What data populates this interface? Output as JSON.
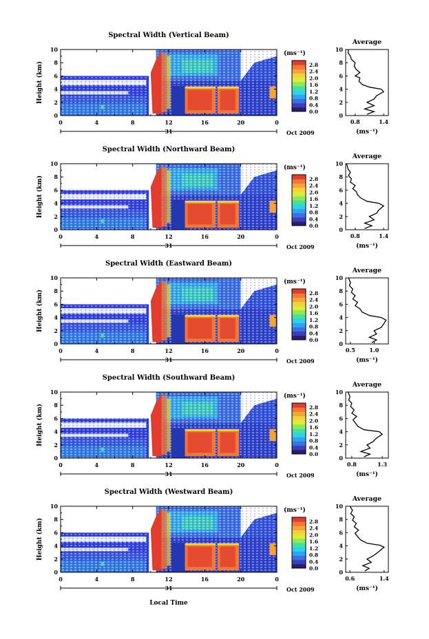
{
  "figure": {
    "xlabel": "Local Time",
    "date_label": "Oct 2009",
    "day_label": "31",
    "unit_label": "(ms⁻¹)",
    "avg_title": "Average",
    "avg_xlabel": "(ms⁻¹)",
    "ylabel": "Height (km)",
    "colorbar_ticks": [
      "2.8",
      "2.4",
      "2.0",
      "1.6",
      "1.2",
      "0.8",
      "0.4",
      "0.0"
    ],
    "colorbar_colors": [
      "#2b1d6b",
      "#3b3fb8",
      "#3c6fe0",
      "#2fa3f0",
      "#2fd0e8",
      "#45e0a0",
      "#8ee85a",
      "#d8ee3a",
      "#f5d23a",
      "#f4a43a",
      "#f0783a",
      "#e23d2c"
    ]
  },
  "chart_data": [
    {
      "type": "heatmap",
      "title": "Spectral Width (Vertical Beam)",
      "xlim": [
        0,
        24
      ],
      "ylim": [
        0,
        10
      ],
      "xticks": [
        "0",
        "4",
        "8",
        "12",
        "16",
        "20",
        "0"
      ],
      "yticks": [
        "0",
        "2",
        "4",
        "6",
        "8",
        "10"
      ],
      "average": {
        "xticks": [
          "0.8",
          "1.4"
        ],
        "xlim": [
          0.6,
          1.5
        ],
        "profile": [
          [
            1.05,
            0.2
          ],
          [
            1.2,
            0.6
          ],
          [
            1.0,
            1.0
          ],
          [
            1.2,
            1.5
          ],
          [
            1.05,
            2.0
          ],
          [
            1.2,
            2.5
          ],
          [
            1.25,
            3.0
          ],
          [
            1.4,
            3.6
          ],
          [
            1.35,
            4.0
          ],
          [
            1.1,
            4.3
          ],
          [
            0.95,
            4.7
          ],
          [
            0.88,
            5.2
          ],
          [
            0.9,
            5.7
          ],
          [
            0.8,
            6.0
          ],
          [
            0.9,
            6.5
          ],
          [
            0.82,
            7.0
          ],
          [
            0.78,
            7.5
          ],
          [
            0.8,
            8.0
          ],
          [
            0.72,
            8.5
          ],
          [
            0.7,
            9.0
          ],
          [
            0.65,
            9.5
          ],
          [
            0.66,
            10.0
          ]
        ]
      }
    },
    {
      "type": "heatmap",
      "title": "Spectral Width (Northward Beam)",
      "xlim": [
        0,
        24
      ],
      "ylim": [
        0,
        10
      ],
      "xticks": [
        "0",
        "4",
        "8",
        "12",
        "16",
        "20",
        "0"
      ],
      "yticks": [
        "0",
        "2",
        "4",
        "6",
        "8",
        "10"
      ],
      "average": {
        "xticks": [
          "0.8",
          "1.4"
        ],
        "xlim": [
          0.6,
          1.5
        ],
        "profile": [
          [
            1.0,
            0.2
          ],
          [
            1.15,
            0.6
          ],
          [
            1.0,
            1.0
          ],
          [
            1.2,
            1.5
          ],
          [
            1.1,
            2.0
          ],
          [
            1.25,
            2.5
          ],
          [
            1.3,
            3.0
          ],
          [
            1.4,
            3.6
          ],
          [
            1.3,
            4.0
          ],
          [
            1.05,
            4.3
          ],
          [
            0.92,
            4.8
          ],
          [
            0.85,
            5.3
          ],
          [
            0.82,
            5.8
          ],
          [
            0.75,
            6.2
          ],
          [
            0.8,
            6.7
          ],
          [
            0.7,
            7.2
          ],
          [
            0.72,
            7.7
          ],
          [
            0.66,
            8.2
          ],
          [
            0.7,
            8.7
          ],
          [
            0.65,
            9.2
          ],
          [
            0.62,
            10.0
          ]
        ]
      }
    },
    {
      "type": "heatmap",
      "title": "Spectral Width (Eastward Beam)",
      "xlim": [
        0,
        24
      ],
      "ylim": [
        0,
        10
      ],
      "xticks": [
        "0",
        "4",
        "8",
        "12",
        "16",
        "20",
        "0"
      ],
      "yticks": [
        "0",
        "2",
        "4",
        "6",
        "8",
        "10"
      ],
      "average": {
        "xticks": [
          "0.5",
          "1.0"
        ],
        "xlim": [
          0.4,
          1.3
        ],
        "profile": [
          [
            0.95,
            0.2
          ],
          [
            1.05,
            0.6
          ],
          [
            0.9,
            1.0
          ],
          [
            1.05,
            1.5
          ],
          [
            1.0,
            2.0
          ],
          [
            1.15,
            2.5
          ],
          [
            1.2,
            3.0
          ],
          [
            1.25,
            3.6
          ],
          [
            1.15,
            4.0
          ],
          [
            0.9,
            4.3
          ],
          [
            0.75,
            4.8
          ],
          [
            0.7,
            5.3
          ],
          [
            0.6,
            5.8
          ],
          [
            0.65,
            6.3
          ],
          [
            0.55,
            6.8
          ],
          [
            0.6,
            7.3
          ],
          [
            0.52,
            7.8
          ],
          [
            0.55,
            8.3
          ],
          [
            0.48,
            8.8
          ],
          [
            0.5,
            9.3
          ],
          [
            0.46,
            10.0
          ]
        ]
      }
    },
    {
      "type": "heatmap",
      "title": "Spectral Width (Southward Beam)",
      "xlim": [
        0,
        24
      ],
      "ylim": [
        0,
        10
      ],
      "xticks": [
        "0",
        "4",
        "8",
        "12",
        "16",
        "20",
        "0"
      ],
      "yticks": [
        "0",
        "2",
        "4",
        "6",
        "8",
        "10"
      ],
      "average": {
        "xticks": [
          "0.8",
          "1.3"
        ],
        "xlim": [
          0.7,
          1.4
        ],
        "profile": [
          [
            1.0,
            0.2
          ],
          [
            1.1,
            0.6
          ],
          [
            0.95,
            1.0
          ],
          [
            1.1,
            1.5
          ],
          [
            1.05,
            2.0
          ],
          [
            1.15,
            2.5
          ],
          [
            1.2,
            3.0
          ],
          [
            1.3,
            3.6
          ],
          [
            1.25,
            4.0
          ],
          [
            1.0,
            4.3
          ],
          [
            0.9,
            4.8
          ],
          [
            0.86,
            5.3
          ],
          [
            0.82,
            5.8
          ],
          [
            0.88,
            6.3
          ],
          [
            0.8,
            6.8
          ],
          [
            0.84,
            7.3
          ],
          [
            0.78,
            7.8
          ],
          [
            0.8,
            8.3
          ],
          [
            0.75,
            8.8
          ],
          [
            0.77,
            9.3
          ],
          [
            0.74,
            10.0
          ]
        ]
      }
    },
    {
      "type": "heatmap",
      "title": "Spectral Width (Westward Beam)",
      "xlim": [
        0,
        24
      ],
      "ylim": [
        0,
        10
      ],
      "xticks": [
        "0",
        "4",
        "8",
        "12",
        "16",
        "20",
        "0"
      ],
      "yticks": [
        "0",
        "2",
        "4",
        "6",
        "8",
        "10"
      ],
      "average": {
        "xticks": [
          "0.6",
          "1.4"
        ],
        "xlim": [
          0.5,
          1.5
        ],
        "profile": [
          [
            0.95,
            0.2
          ],
          [
            1.05,
            0.6
          ],
          [
            0.9,
            1.0
          ],
          [
            1.1,
            1.5
          ],
          [
            1.0,
            2.0
          ],
          [
            1.15,
            2.5
          ],
          [
            1.25,
            3.0
          ],
          [
            1.4,
            3.8
          ],
          [
            1.3,
            4.1
          ],
          [
            1.0,
            4.4
          ],
          [
            0.85,
            4.9
          ],
          [
            0.78,
            5.4
          ],
          [
            0.72,
            5.9
          ],
          [
            0.8,
            6.4
          ],
          [
            0.7,
            6.9
          ],
          [
            0.75,
            7.4
          ],
          [
            0.66,
            7.9
          ],
          [
            0.7,
            8.4
          ],
          [
            0.62,
            8.9
          ],
          [
            0.66,
            9.4
          ],
          [
            0.6,
            10.0
          ]
        ]
      }
    }
  ]
}
